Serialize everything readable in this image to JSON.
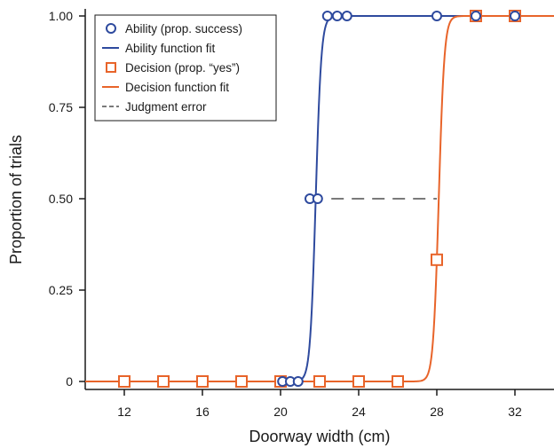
{
  "chart_data": {
    "type": "scatter",
    "xlabel": "Doorway width (cm)",
    "ylabel": "Proportion of trials",
    "xlim": [
      10,
      34
    ],
    "ylim": [
      0,
      1
    ],
    "x_ticks": [
      12,
      16,
      20,
      24,
      28,
      32
    ],
    "x_tick_labels": [
      "12",
      "16",
      "20",
      "24",
      "28",
      "32"
    ],
    "y_ticks": [
      0,
      0.25,
      0.5,
      0.75,
      1.0
    ],
    "y_tick_labels": [
      "0",
      "0.25",
      "0.50",
      "0.75",
      "1.00"
    ],
    "grid": false,
    "legend_position": "top-left",
    "series": [
      {
        "name": "Ability (prop. success)",
        "kind": "points",
        "marker": "circle",
        "color": "#2e4a9e",
        "x": [
          20.1,
          20.5,
          20.9,
          21.5,
          21.9,
          22.4,
          22.9,
          23.4,
          28.0,
          30.0,
          32.0
        ],
        "y": [
          0,
          0,
          0,
          0.5,
          0.5,
          1,
          1,
          1,
          1,
          1,
          1
        ]
      },
      {
        "name": "Ability function fit",
        "kind": "curve",
        "color": "#2e4a9e",
        "midpoint": 21.8,
        "slope": 7.0
      },
      {
        "name": "Decision (prop. “yes”)",
        "kind": "points",
        "marker": "square",
        "color": "#e8642a",
        "x": [
          12,
          14,
          16,
          18,
          20,
          22,
          24,
          26,
          28,
          30,
          32
        ],
        "y": [
          0,
          0,
          0,
          0,
          0,
          0,
          0,
          0,
          0.333,
          1,
          1
        ]
      },
      {
        "name": "Decision function fit",
        "kind": "curve",
        "color": "#e8642a",
        "midpoint": 28.1,
        "slope": 7.0
      },
      {
        "name": "Judgment error",
        "kind": "dashed",
        "color": "#7a7a7a",
        "x": [
          22.6,
          28.0
        ],
        "y": [
          0.5,
          0.5
        ]
      }
    ]
  }
}
